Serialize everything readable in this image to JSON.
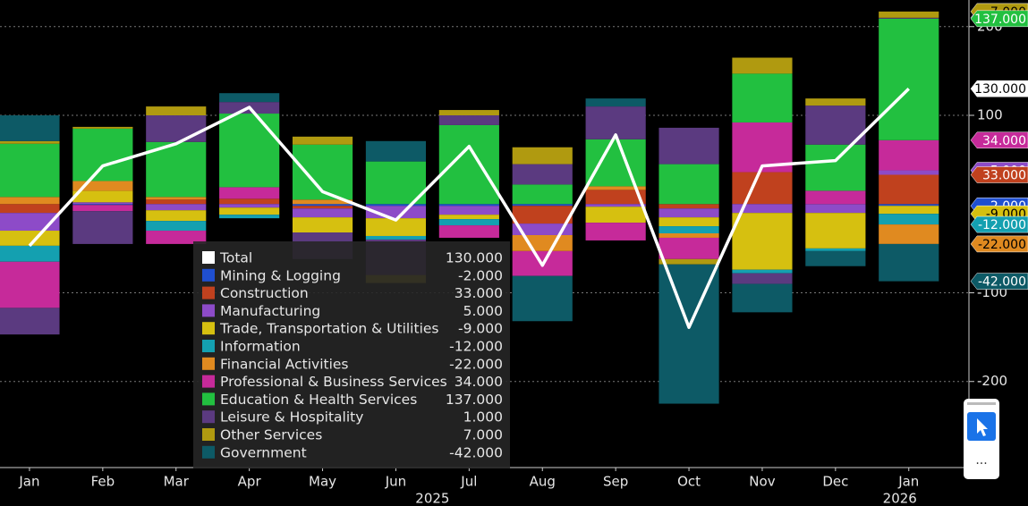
{
  "chart_data": {
    "type": "stacked-bar",
    "categories": [
      "Jan",
      "Feb",
      "Mar",
      "Apr",
      "May",
      "Jun",
      "Jul",
      "Aug",
      "Sep",
      "Oct",
      "Nov",
      "Dec",
      "Jan"
    ],
    "year_labels": [
      "2025",
      "2026"
    ],
    "ylim": [
      -297,
      230
    ],
    "yticks": [
      -200,
      -100,
      100,
      200
    ],
    "grid": true,
    "series": [
      {
        "name": "Total",
        "style": "line",
        "color": "#ffffff",
        "latest_label": "130.000",
        "values": [
          -47,
          43,
          68,
          109,
          14,
          -18,
          65,
          -69,
          78,
          -139,
          43,
          49,
          130
        ]
      },
      {
        "name": "Mining & Logging",
        "style": "bar",
        "color": "#1f4fd0",
        "latest_label": "-2.000",
        "values": [
          0,
          -1,
          0,
          0,
          -2,
          -2,
          -2,
          -2,
          0,
          0,
          0,
          0,
          -2
        ]
      },
      {
        "name": "Construction",
        "style": "bar",
        "color": "#c0411e",
        "latest_label": "33.000",
        "values": [
          -10,
          0,
          5,
          6,
          -3,
          0,
          0,
          -20,
          16,
          -5,
          36,
          0,
          33
        ]
      },
      {
        "name": "Manufacturing",
        "style": "bar",
        "color": "#8d4bc8",
        "latest_label": "5.000",
        "values": [
          -20,
          2,
          -7,
          -4,
          -10,
          -14,
          -10,
          -13,
          -3,
          -10,
          -10,
          -10,
          5
        ]
      },
      {
        "name": "Trade, Transportation & Utilities",
        "style": "bar",
        "color": "#d6c010",
        "latest_label": "-9.000",
        "values": [
          -17,
          13,
          -12,
          -8,
          -17,
          -20,
          -5,
          0,
          -18,
          -10,
          -64,
          -40,
          -9
        ]
      },
      {
        "name": "Information",
        "style": "bar",
        "color": "#14a0b0",
        "latest_label": "-12.000",
        "values": [
          -18,
          0,
          -11,
          -4,
          0,
          -4,
          -7,
          0,
          0,
          -8,
          -4,
          -3,
          -12
        ]
      },
      {
        "name": "Financial Activities",
        "style": "bar",
        "color": "#e08a20",
        "latest_label": "-22.000",
        "values": [
          8,
          11,
          3,
          0,
          5,
          0,
          0,
          -18,
          4,
          -5,
          0,
          0,
          -22
        ]
      },
      {
        "name": "Professional & Business Services",
        "style": "bar",
        "color": "#c62a9a",
        "latest_label": "34.000",
        "values": [
          -52,
          -7,
          -15,
          13,
          0,
          0,
          -14,
          -28,
          -20,
          -24,
          56,
          15,
          34
        ]
      },
      {
        "name": "Education & Health Services",
        "style": "bar",
        "color": "#22c040",
        "latest_label": "137.000",
        "values": [
          60,
          59,
          62,
          83,
          62,
          48,
          89,
          22,
          53,
          45,
          55,
          52,
          137
        ]
      },
      {
        "name": "Leisure & Hospitality",
        "style": "bar",
        "color": "#5b3a80",
        "latest_label": "1.000",
        "values": [
          -30,
          -37,
          30,
          13,
          -30,
          -40,
          11,
          23,
          37,
          41,
          -12,
          44,
          1
        ]
      },
      {
        "name": "Other Services",
        "style": "bar",
        "color": "#b09a10",
        "latest_label": "7.000",
        "values": [
          3,
          2,
          10,
          0,
          9,
          -9,
          6,
          19,
          0,
          -6,
          18,
          8,
          7
        ]
      },
      {
        "name": "Government",
        "style": "bar",
        "color": "#0d5a66",
        "latest_label": "-42.000",
        "values": [
          29,
          0,
          0,
          10,
          0,
          23,
          0,
          -51,
          9,
          -157,
          -32,
          -17,
          -42
        ]
      }
    ]
  },
  "toolbar": {
    "more": "..."
  }
}
